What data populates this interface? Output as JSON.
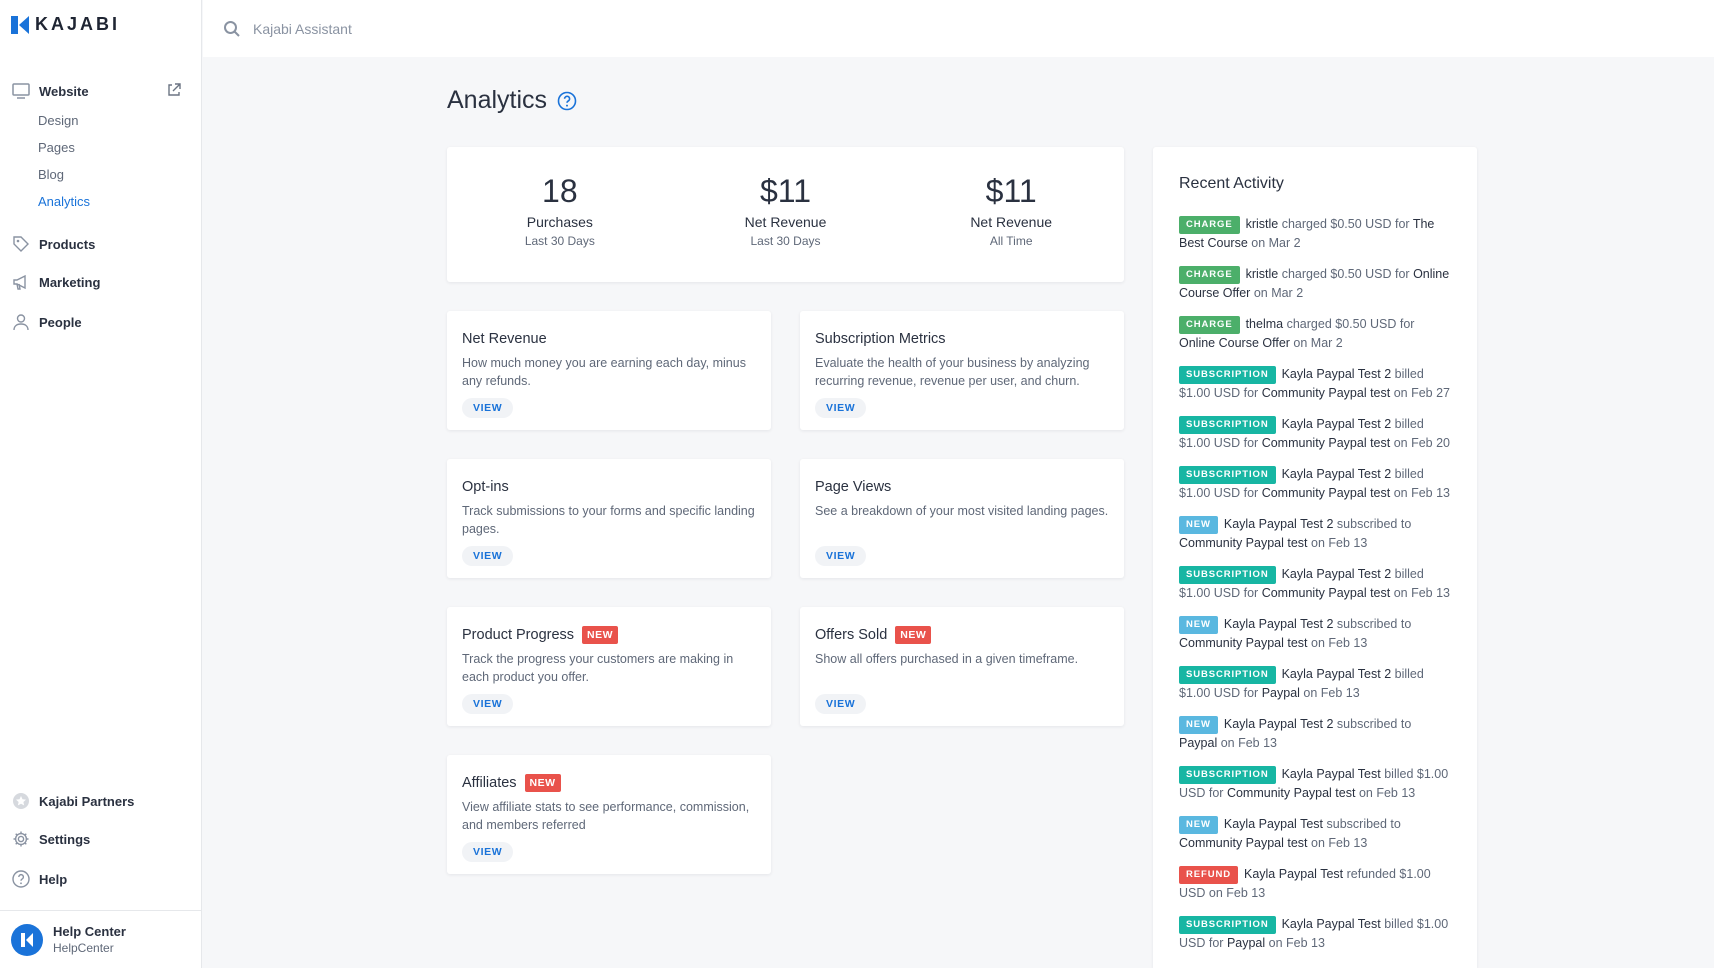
{
  "brand": {
    "name": "KAJABI",
    "accent": "#1a73d9"
  },
  "search": {
    "placeholder": "Kajabi Assistant"
  },
  "sidebar": {
    "website": {
      "label": "Website",
      "icon": "monitor-icon",
      "sub": [
        "Design",
        "Pages",
        "Blog",
        "Analytics"
      ],
      "active": "Analytics"
    },
    "items": [
      {
        "label": "Products",
        "icon": "tag-icon"
      },
      {
        "label": "Marketing",
        "icon": "megaphone-icon"
      },
      {
        "label": "People",
        "icon": "person-icon"
      }
    ],
    "bottom_items": [
      {
        "label": "Kajabi Partners",
        "icon": "partners-icon"
      },
      {
        "label": "Settings",
        "icon": "gear-icon"
      },
      {
        "label": "Help",
        "icon": "question-icon"
      }
    ],
    "user": {
      "name": "Help Center",
      "sub": "HelpCenter"
    }
  },
  "page": {
    "title": "Analytics"
  },
  "stats": [
    {
      "value": "18",
      "label": "Purchases",
      "sub": "Last 30 Days"
    },
    {
      "value": "$11",
      "label": "Net Revenue",
      "sub": "Last 30 Days"
    },
    {
      "value": "$11",
      "label": "Net Revenue",
      "sub": "All Time"
    }
  ],
  "features": [
    {
      "title": "Net Revenue",
      "desc": "How much money you are earning each day, minus any refunds.",
      "badge": "",
      "button": "VIEW"
    },
    {
      "title": "Subscription Metrics",
      "desc": "Evaluate the health of your business by analyzing recurring revenue, revenue per user, and churn.",
      "badge": "",
      "button": "VIEW"
    },
    {
      "title": "Opt-ins",
      "desc": "Track submissions to your forms and specific landing pages.",
      "badge": "",
      "button": "VIEW"
    },
    {
      "title": "Page Views",
      "desc": "See a breakdown of your most visited landing pages.",
      "badge": "",
      "button": "VIEW"
    },
    {
      "title": "Product Progress",
      "desc": "Track the progress your customers are making in each product you offer.",
      "badge": "NEW",
      "button": "VIEW"
    },
    {
      "title": "Offers Sold",
      "desc": "Show all offers purchased in a given timeframe.",
      "badge": "NEW",
      "button": "VIEW"
    },
    {
      "title": "Affiliates",
      "desc": "View affiliate stats to see performance, commission, and members referred",
      "badge": "NEW",
      "button": "VIEW"
    }
  ],
  "activity": {
    "title": "Recent Activity",
    "items": [
      {
        "tag": "CHARGE",
        "kind": "charge",
        "name": "kristle",
        "action": "charged $0.50 USD for",
        "product": "The Best Course",
        "date": "on Mar 2"
      },
      {
        "tag": "CHARGE",
        "kind": "charge",
        "name": "kristle",
        "action": "charged $0.50 USD for",
        "product": "Online Course Offer",
        "date": "on Mar 2"
      },
      {
        "tag": "CHARGE",
        "kind": "charge",
        "name": "thelma",
        "action": "charged $0.50 USD for",
        "product": "Online Course Offer",
        "date": "on Mar 2"
      },
      {
        "tag": "SUBSCRIPTION",
        "kind": "subscription",
        "name": "Kayla Paypal Test 2",
        "action": "billed $1.00 USD for",
        "product": "Community Paypal test",
        "date": "on Feb 27"
      },
      {
        "tag": "SUBSCRIPTION",
        "kind": "subscription",
        "name": "Kayla Paypal Test 2",
        "action": "billed $1.00 USD for",
        "product": "Community Paypal test",
        "date": "on Feb 20"
      },
      {
        "tag": "SUBSCRIPTION",
        "kind": "subscription",
        "name": "Kayla Paypal Test 2",
        "action": "billed $1.00 USD for",
        "product": "Community Paypal test",
        "date": "on Feb 13"
      },
      {
        "tag": "NEW",
        "kind": "new",
        "name": "Kayla Paypal Test 2",
        "action": "subscribed to",
        "product": "Community Paypal test",
        "date": "on Feb 13"
      },
      {
        "tag": "SUBSCRIPTION",
        "kind": "subscription",
        "name": "Kayla Paypal Test 2",
        "action": "billed $1.00 USD for",
        "product": "Community Paypal test",
        "date": "on Feb 13"
      },
      {
        "tag": "NEW",
        "kind": "new",
        "name": "Kayla Paypal Test 2",
        "action": "subscribed to",
        "product": "Community Paypal test",
        "date": "on Feb 13"
      },
      {
        "tag": "SUBSCRIPTION",
        "kind": "subscription",
        "name": "Kayla Paypal Test 2",
        "action": "billed $1.00 USD for",
        "product": "Paypal",
        "date": "on Feb 13"
      },
      {
        "tag": "NEW",
        "kind": "new",
        "name": "Kayla Paypal Test 2",
        "action": "subscribed to",
        "product": "Paypal",
        "date": "on Feb 13"
      },
      {
        "tag": "SUBSCRIPTION",
        "kind": "subscription",
        "name": "Kayla Paypal Test",
        "action": "billed $1.00 USD for",
        "product": "Community Paypal test",
        "date": "on Feb 13"
      },
      {
        "tag": "NEW",
        "kind": "new",
        "name": "Kayla Paypal Test",
        "action": "subscribed to",
        "product": "Community Paypal test",
        "date": "on Feb 13"
      },
      {
        "tag": "REFUND",
        "kind": "refund",
        "name": "Kayla Paypal Test",
        "action": "refunded $1.00 USD",
        "product": "",
        "date": "on Feb 13"
      },
      {
        "tag": "SUBSCRIPTION",
        "kind": "subscription",
        "name": "Kayla Paypal Test",
        "action": "billed $1.00 USD for",
        "product": "Paypal",
        "date": "on Feb 13"
      }
    ]
  }
}
